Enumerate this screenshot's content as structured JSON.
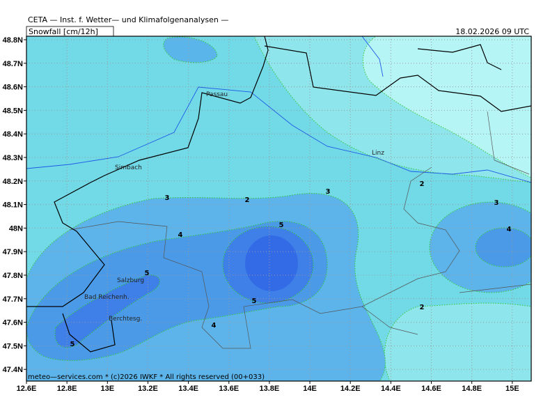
{
  "header": {
    "institute": "CETA — Inst. f. Wetter— und Klimafolgenanalysen —",
    "product": "Snowfall [cm/12h]",
    "valid_time": "18.02.2026 09 UTC"
  },
  "axes": {
    "longitude_ticks": [
      "12.6E",
      "12.8E",
      "13E",
      "13.2E",
      "13.4E",
      "13.6E",
      "13.8E",
      "14E",
      "14.2E",
      "14.4E",
      "14.6E",
      "14.8E",
      "15E"
    ],
    "latitude_ticks": [
      "48.8N",
      "48.7N",
      "48.6N",
      "48.5N",
      "48.4N",
      "48.3N",
      "48.2N",
      "48.1N",
      "48N",
      "47.9N",
      "47.8N",
      "47.7N",
      "47.6N",
      "47.5N",
      "47.4N"
    ]
  },
  "places": [
    "Passau",
    "Linz",
    "Simbach",
    "Salzburg",
    "Bad Reichenh.",
    "Berchtesg."
  ],
  "contour_labels": [
    3,
    2,
    3,
    2,
    3,
    4,
    4,
    5,
    5,
    5,
    4,
    2,
    5
  ],
  "footer": "meteo—services.com * (c)2026 IWKF * All rights reserved (00+033)"
}
